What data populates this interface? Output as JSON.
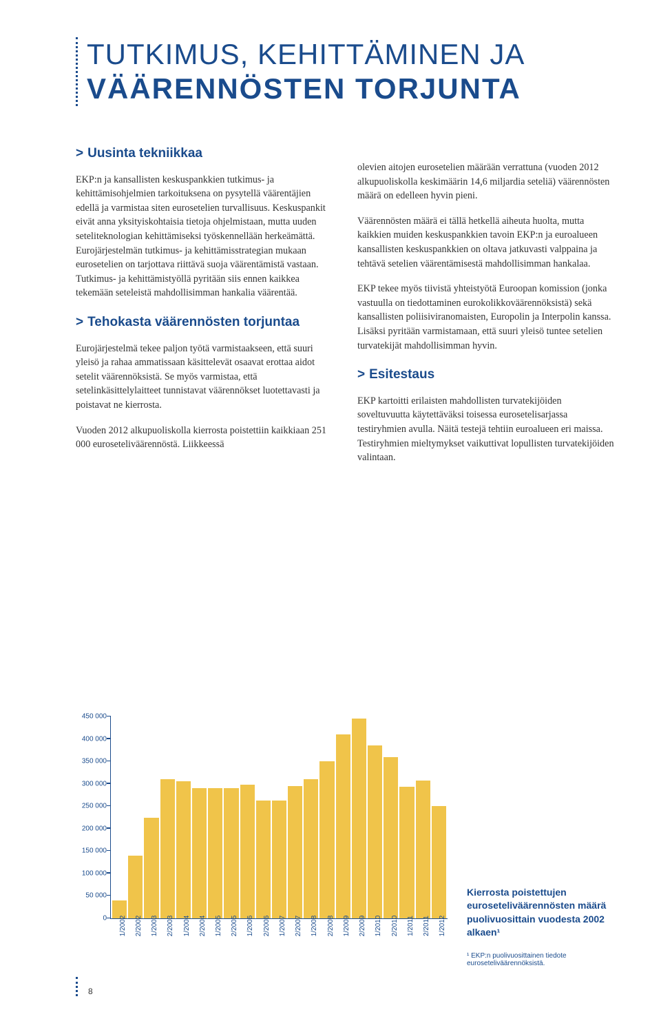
{
  "heading": {
    "line1": "TUTKIMUS, KEHITTÄMINEN JA",
    "line2": "VÄÄRENNÖSTEN TORJUNTA"
  },
  "left": {
    "h_uusinta": "Uusinta tekniikkaa",
    "p1": "EKP:n ja kansallisten keskuspankkien tutkimus- ja kehittämisohjelmien tarkoituksena on pysytellä väärentäjien edellä ja varmistaa siten eurosetelien turvallisuus. Keskuspankit eivät anna yksityiskohtaisia tietoja ohjelmistaan, mutta uuden seteliteknologian kehittämiseksi työskennellään herkeämättä. Eurojärjestelmän tutkimus- ja kehittämisstrategian mukaan eurosetelien on tarjottava riittävä suoja väärentämistä vastaan. Tutkimus- ja kehittämistyöllä pyritään siis ennen kaikkea tekemään seteleistä mahdollisimman hankalia väärentää.",
    "h_tehokasta": "Tehokasta väärennösten torjuntaa",
    "p2": "Eurojärjestelmä tekee paljon työtä varmistaakseen, että suuri yleisö ja rahaa ammatissaan käsittelevät osaavat erottaa aidot setelit väärennöksistä. Se myös varmistaa, että setelinkäsittelylaitteet tunnistavat väärennökset luotettavasti ja poistavat ne kierrosta.",
    "p3": "Vuoden 2012 alkupuoliskolla kierrosta poistettiin kaikkiaan 251 000 euroseteliväärennöstä. Liikkeessä"
  },
  "right": {
    "p1": "olevien aitojen eurosetelien määrään verrattuna (vuoden 2012 alkupuoliskolla keskimäärin 14,6 miljardia seteliä) väärennösten määrä on edelleen hyvin pieni.",
    "p2": "Väärennösten määrä ei tällä hetkellä aiheuta huolta, mutta kaikkien muiden keskuspankkien tavoin EKP:n ja euroalueen kansallisten keskuspankkien on oltava jatkuvasti valppaina ja tehtävä setelien väärentämisestä mahdollisimman hankalaa.",
    "p3": "EKP tekee myös tiivistä yhteistyötä Euroopan komission (jonka vastuulla on tiedottaminen eurokolikkoväärennöksistä) sekä kansallisten poliisiviranomaisten, Europolin ja Interpolin kanssa. Lisäksi pyritään varmistamaan, että suuri yleisö tuntee setelien turvatekijät mahdollisimman hyvin.",
    "h_esitestaus": "Esitestaus",
    "p4": "EKP kartoitti erilaisten mahdollisten turvatekijöiden soveltuvuutta käytettäväksi toisessa eurosetelisarjassa testiryhmien avulla. Näitä testejä tehtiin euroalueen eri maissa. Testiryhmien mieltymykset vaikuttivat lopullisten turvatekijöiden valintaan."
  },
  "chart": {
    "type": "bar",
    "ylim_max": 450000,
    "ytick_labels": [
      "0",
      "50 000",
      "100 000",
      "150 000",
      "200 000",
      "250 000",
      "300 000",
      "350 000",
      "400 000",
      "450 000"
    ],
    "ytick_values": [
      0,
      50000,
      100000,
      150000,
      200000,
      250000,
      300000,
      350000,
      400000,
      450000
    ],
    "categories": [
      "1/2002",
      "2/2002",
      "1/2003",
      "2/2003",
      "1/2004",
      "2/2004",
      "1/2005",
      "2/2005",
      "1/2006",
      "2/2006",
      "1/2007",
      "2/2007",
      "1/2008",
      "2/2008",
      "1/2009",
      "2/2009",
      "1/2010",
      "2/2010",
      "1/2011",
      "2/2011",
      "1/2012"
    ],
    "values": [
      40000,
      140000,
      225000,
      310000,
      305000,
      290000,
      290000,
      290000,
      298000,
      262000,
      263000,
      295000,
      310000,
      350000,
      410000,
      445000,
      385000,
      360000,
      293000,
      307000,
      251000
    ],
    "bar_color": "#f0c44a",
    "axis_color": "#1a4b8c",
    "caption_title": "Kierrosta poistettujen euroseteliväärennösten määrä puolivuosittain vuodesta 2002 alkaen¹",
    "footnote": "¹ EKP:n puolivuosittainen tiedote euroseteliväärennöksistä."
  },
  "page_number": "8"
}
